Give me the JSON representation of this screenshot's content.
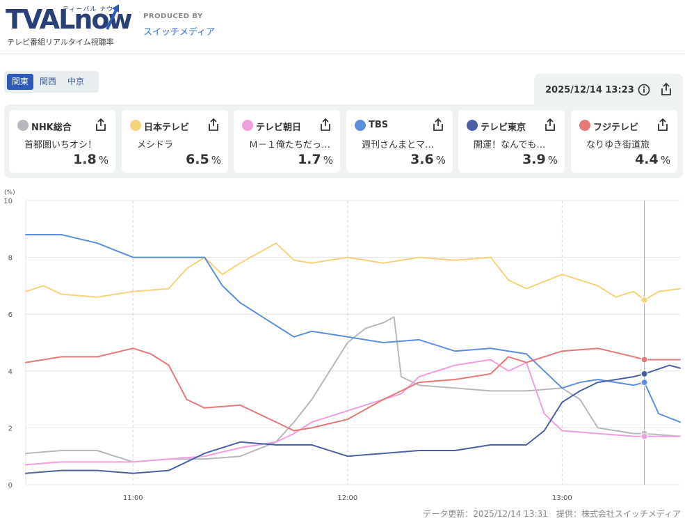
{
  "header": {
    "logo": "TVALnow",
    "logo_kana": "ティーバル ナウ",
    "logo_sub": "テレビ番組リアルタイム視聴率",
    "produced_by": "PRODUCED BY",
    "producer": "スイッチメディア"
  },
  "regions": [
    {
      "label": "関東",
      "active": true
    },
    {
      "label": "関西",
      "active": false
    },
    {
      "label": "中京",
      "active": false
    }
  ],
  "timestamp": "2025/12/14 13:23",
  "cards": [
    {
      "station": "NHK総合",
      "program": "首都圏いちオシ！",
      "rating": "1.8",
      "unit": "%",
      "color": "#b5b8bd"
    },
    {
      "station": "日本テレビ",
      "program": "メシドラ",
      "rating": "6.5",
      "unit": "%",
      "color": "#f5d37a"
    },
    {
      "station": "テレビ朝日",
      "program": "Ｍ－１俺たちだっ…",
      "rating": "1.7",
      "unit": "%",
      "color": "#ef9ee0"
    },
    {
      "station": "TBS",
      "program": "週刊さんまとマ…",
      "rating": "3.6",
      "unit": "%",
      "color": "#5b8ee0"
    },
    {
      "station": "テレビ東京",
      "program": "開運！なんでも…",
      "rating": "3.9",
      "unit": "%",
      "color": "#4a5fa3"
    },
    {
      "station": "フジテレビ",
      "program": "なりゆき街道旅",
      "rating": "4.4",
      "unit": "%",
      "color": "#e57878"
    }
  ],
  "chart_data": {
    "type": "line",
    "ylabel": "(%)",
    "ylim": [
      0,
      10
    ],
    "yticks": [
      0,
      2,
      4,
      6,
      8,
      10
    ],
    "xlim": [
      "10:30",
      "13:33"
    ],
    "xticks": [
      "11:00",
      "12:00",
      "13:00"
    ],
    "cursor_time": "13:23",
    "grid": true,
    "series": [
      {
        "name": "NHK総合",
        "color": "#b5b8bd",
        "x": [
          "10:30",
          "10:40",
          "10:50",
          "11:00",
          "11:10",
          "11:20",
          "11:30",
          "11:40",
          "11:45",
          "11:50",
          "11:55",
          "12:00",
          "12:05",
          "12:10",
          "12:13",
          "12:15",
          "12:20",
          "12:30",
          "12:40",
          "12:50",
          "13:00",
          "13:05",
          "13:10",
          "13:20",
          "13:23",
          "13:33"
        ],
        "values": [
          1.1,
          1.2,
          1.2,
          0.8,
          0.9,
          0.9,
          1.0,
          1.5,
          2.2,
          3.0,
          4.0,
          5.0,
          5.5,
          5.7,
          5.9,
          3.8,
          3.5,
          3.4,
          3.3,
          3.3,
          3.4,
          3.0,
          2.0,
          1.8,
          1.8,
          1.7
        ]
      },
      {
        "name": "日本テレビ",
        "color": "#f5d37a",
        "x": [
          "10:30",
          "10:35",
          "10:40",
          "10:50",
          "11:00",
          "11:10",
          "11:15",
          "11:20",
          "11:25",
          "11:30",
          "11:40",
          "11:45",
          "11:50",
          "12:00",
          "12:10",
          "12:20",
          "12:30",
          "12:40",
          "12:45",
          "12:50",
          "13:00",
          "13:10",
          "13:15",
          "13:20",
          "13:23",
          "13:27",
          "13:33"
        ],
        "values": [
          6.8,
          7.0,
          6.7,
          6.6,
          6.8,
          6.9,
          7.6,
          8.0,
          7.4,
          7.8,
          8.5,
          7.9,
          7.8,
          8.0,
          7.8,
          8.0,
          7.9,
          8.0,
          7.2,
          6.9,
          7.4,
          7.0,
          6.6,
          6.8,
          6.5,
          6.8,
          6.9
        ]
      },
      {
        "name": "テレビ朝日",
        "color": "#ef9ee0",
        "x": [
          "10:30",
          "10:40",
          "10:50",
          "11:00",
          "11:10",
          "11:20",
          "11:30",
          "11:40",
          "11:45",
          "11:50",
          "12:00",
          "12:10",
          "12:15",
          "12:20",
          "12:30",
          "12:40",
          "12:45",
          "12:50",
          "12:55",
          "13:00",
          "13:10",
          "13:20",
          "13:23",
          "13:33"
        ],
        "values": [
          0.7,
          0.8,
          0.8,
          0.8,
          0.9,
          1.0,
          1.3,
          1.5,
          1.8,
          2.2,
          2.6,
          3.0,
          3.2,
          3.8,
          4.2,
          4.4,
          4.0,
          4.3,
          2.5,
          1.9,
          1.8,
          1.7,
          1.7,
          1.7
        ]
      },
      {
        "name": "TBS",
        "color": "#5b8ee0",
        "x": [
          "10:30",
          "10:40",
          "10:50",
          "11:00",
          "11:10",
          "11:20",
          "11:25",
          "11:30",
          "11:40",
          "11:45",
          "11:50",
          "12:00",
          "12:10",
          "12:20",
          "12:30",
          "12:40",
          "12:50",
          "12:55",
          "13:00",
          "13:05",
          "13:10",
          "13:20",
          "13:23",
          "13:27",
          "13:33"
        ],
        "values": [
          8.8,
          8.8,
          8.5,
          8.0,
          8.0,
          8.0,
          7.0,
          6.4,
          5.6,
          5.2,
          5.4,
          5.2,
          5.0,
          5.1,
          4.7,
          4.8,
          4.6,
          4.0,
          3.4,
          3.6,
          3.7,
          3.5,
          3.6,
          2.5,
          2.2
        ]
      },
      {
        "name": "テレビ東京",
        "color": "#4a5fa3",
        "x": [
          "10:30",
          "10:40",
          "10:50",
          "11:00",
          "11:10",
          "11:20",
          "11:30",
          "11:40",
          "11:50",
          "12:00",
          "12:10",
          "12:20",
          "12:30",
          "12:40",
          "12:50",
          "12:55",
          "13:00",
          "13:05",
          "13:10",
          "13:20",
          "13:23",
          "13:30",
          "13:33"
        ],
        "values": [
          0.4,
          0.5,
          0.5,
          0.4,
          0.5,
          1.1,
          1.5,
          1.4,
          1.4,
          1.0,
          1.1,
          1.2,
          1.2,
          1.4,
          1.4,
          1.9,
          2.9,
          3.3,
          3.6,
          3.8,
          3.9,
          4.2,
          4.1
        ]
      },
      {
        "name": "フジテレビ",
        "color": "#e57878",
        "x": [
          "10:30",
          "10:40",
          "10:50",
          "11:00",
          "11:05",
          "11:10",
          "11:15",
          "11:20",
          "11:30",
          "11:40",
          "11:45",
          "11:50",
          "12:00",
          "12:10",
          "12:20",
          "12:30",
          "12:40",
          "12:45",
          "12:50",
          "13:00",
          "13:10",
          "13:20",
          "13:23",
          "13:33"
        ],
        "values": [
          4.3,
          4.5,
          4.5,
          4.8,
          4.6,
          4.2,
          3.0,
          2.7,
          2.8,
          2.2,
          1.9,
          2.0,
          2.3,
          3.0,
          3.6,
          3.7,
          3.9,
          4.5,
          4.3,
          4.7,
          4.8,
          4.5,
          4.4,
          4.4
        ]
      }
    ]
  },
  "footer": "データ更新：2025/12/14 13:31　提供：株式会社スイッチメディア"
}
